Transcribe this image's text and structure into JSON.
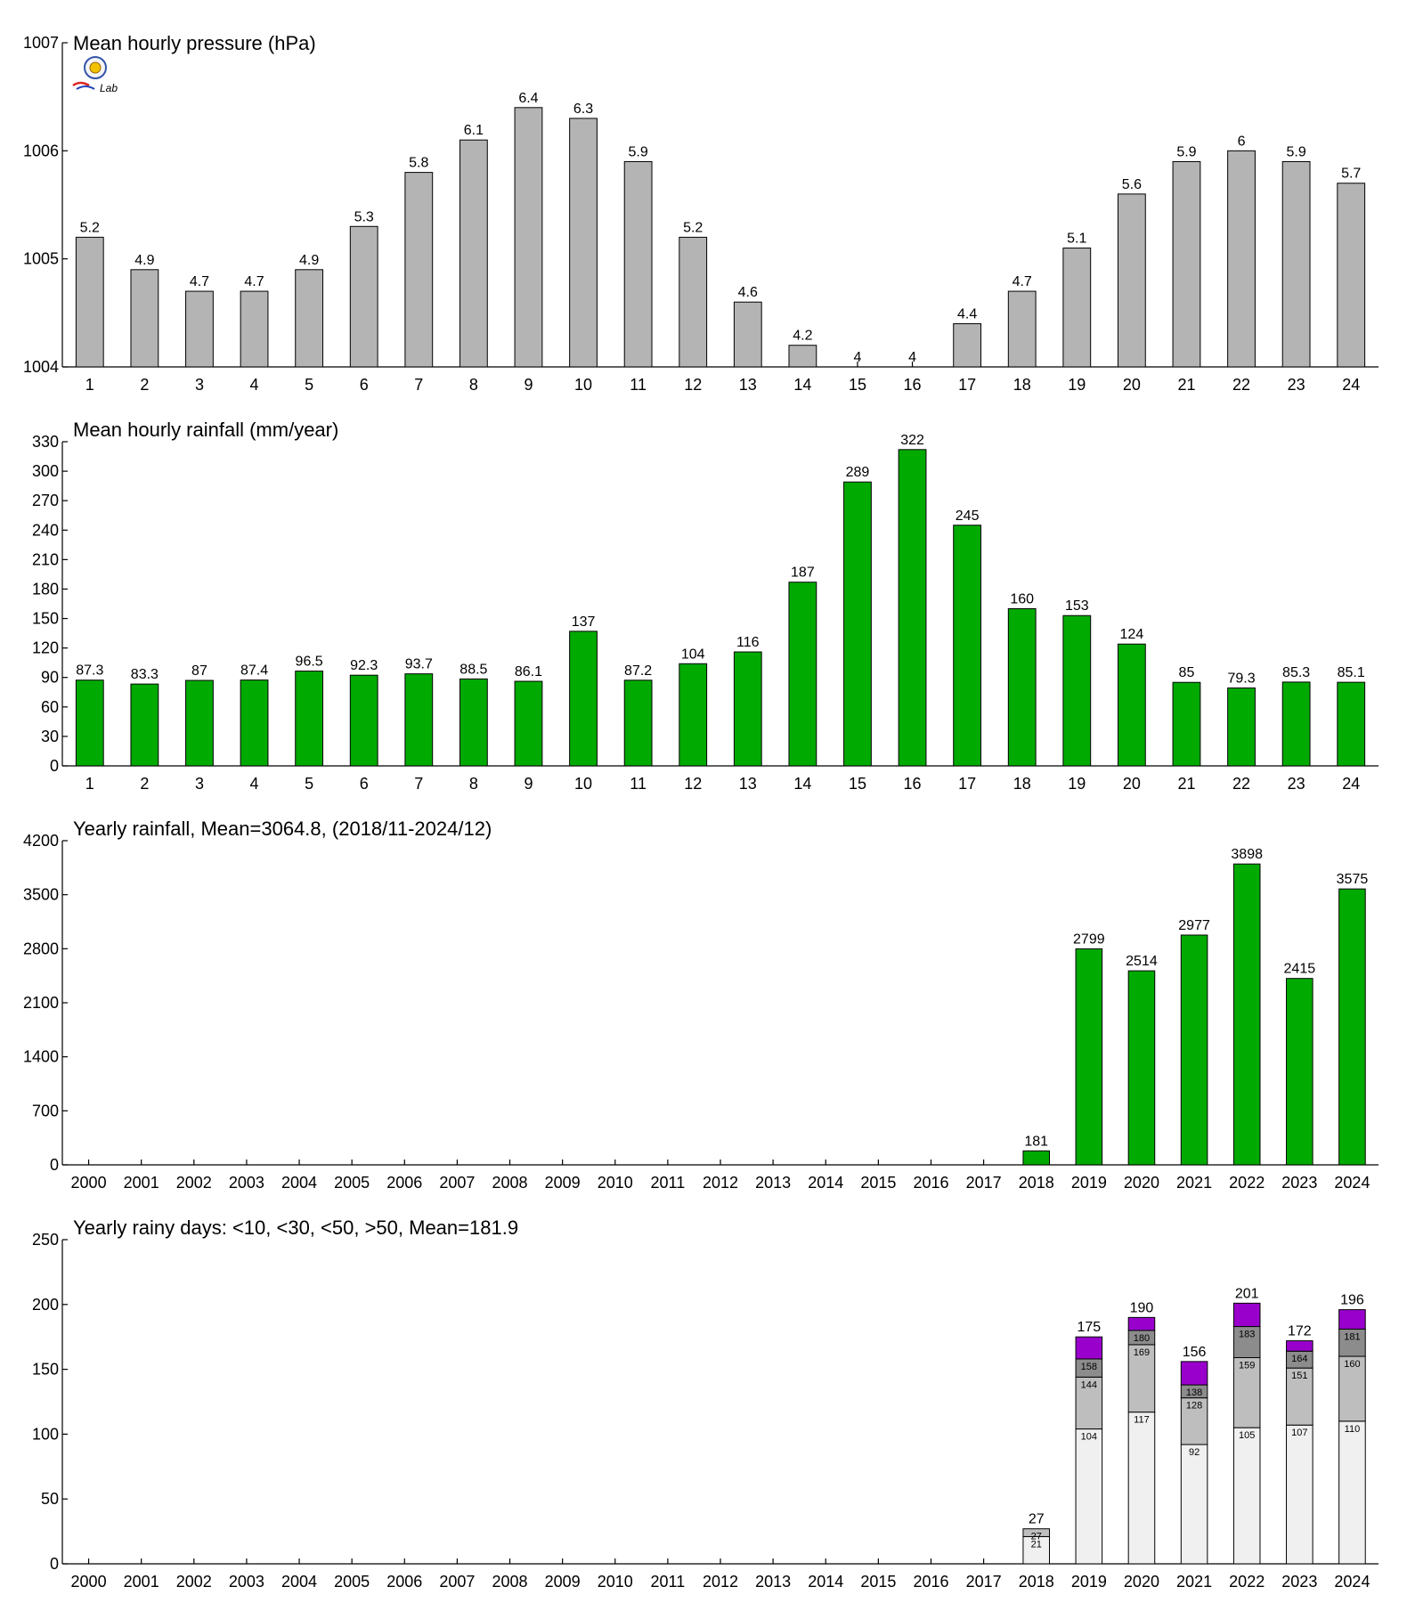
{
  "colors": {
    "pressure_bar": "#b4b4b4",
    "rain_bar": "#00aa00",
    "days_lt10": "#f0f0f0",
    "days_lt30": "#bebebe",
    "days_lt50": "#8c8c8c",
    "days_gt50": "#9900cc"
  },
  "logo": {
    "text": "Lab",
    "icon": "sun-seal-logo"
  },
  "chart_data": [
    {
      "type": "bar",
      "title": "Mean hourly pressure (hPa)",
      "categories": [
        "1",
        "2",
        "3",
        "4",
        "5",
        "6",
        "7",
        "8",
        "9",
        "10",
        "11",
        "12",
        "13",
        "14",
        "15",
        "16",
        "17",
        "18",
        "19",
        "20",
        "21",
        "22",
        "23",
        "24"
      ],
      "values": [
        1005.2,
        1004.9,
        1004.7,
        1004.7,
        1004.9,
        1005.3,
        1005.8,
        1006.1,
        1006.4,
        1006.3,
        1005.9,
        1005.2,
        1004.6,
        1004.2,
        1004.0,
        1004.0,
        1004.4,
        1004.7,
        1005.1,
        1005.6,
        1005.9,
        1006.0,
        1005.9,
        1005.7
      ],
      "labels": [
        "5.2",
        "4.9",
        "4.7",
        "4.7",
        "4.9",
        "5.3",
        "5.8",
        "6.1",
        "6.4",
        "6.3",
        "5.9",
        "5.2",
        "4.6",
        "4.2",
        "4",
        "4",
        "4.4",
        "4.7",
        "5.1",
        "5.6",
        "5.9",
        "6",
        "5.9",
        "5.7"
      ],
      "ylim": [
        1004,
        1007
      ],
      "yticks": [
        1004,
        1005,
        1006,
        1007
      ],
      "ytick_labels": [
        "1004",
        "1005",
        "1006",
        "1007"
      ],
      "grid": false
    },
    {
      "type": "bar",
      "title": "Mean hourly rainfall (mm/year)",
      "categories": [
        "1",
        "2",
        "3",
        "4",
        "5",
        "6",
        "7",
        "8",
        "9",
        "10",
        "11",
        "12",
        "13",
        "14",
        "15",
        "16",
        "17",
        "18",
        "19",
        "20",
        "21",
        "22",
        "23",
        "24"
      ],
      "values": [
        87.3,
        83.3,
        87,
        87.4,
        96.5,
        92.3,
        93.7,
        88.5,
        86.1,
        137,
        87.2,
        104,
        116,
        187,
        289,
        322,
        245,
        160,
        153,
        124,
        85,
        79.3,
        85.3,
        85.1
      ],
      "labels": [
        "87.3",
        "83.3",
        "87",
        "87.4",
        "96.5",
        "92.3",
        "93.7",
        "88.5",
        "86.1",
        "137",
        "87.2",
        "104",
        "116",
        "187",
        "289",
        "322",
        "245",
        "160",
        "153",
        "124",
        "85",
        "79.3",
        "85.3",
        "85.1"
      ],
      "ylim": [
        0,
        330
      ],
      "yticks": [
        0,
        30,
        60,
        90,
        120,
        150,
        180,
        210,
        240,
        270,
        300,
        330
      ],
      "ytick_labels": [
        "0",
        "30",
        "60",
        "90",
        "120",
        "150",
        "180",
        "210",
        "240",
        "270",
        "300",
        "330"
      ],
      "grid": false
    },
    {
      "type": "bar",
      "title": "Yearly rainfall, Mean=3064.8, (2018/11-2024/12)",
      "categories": [
        "2000",
        "2001",
        "2002",
        "2003",
        "2004",
        "2005",
        "2006",
        "2007",
        "2008",
        "2009",
        "2010",
        "2011",
        "2012",
        "2013",
        "2014",
        "2015",
        "2016",
        "2017",
        "2018",
        "2019",
        "2020",
        "2021",
        "2022",
        "2023",
        "2024"
      ],
      "values": [
        null,
        null,
        null,
        null,
        null,
        null,
        null,
        null,
        null,
        null,
        null,
        null,
        null,
        null,
        null,
        null,
        null,
        null,
        181,
        2799,
        2514,
        2977,
        3898,
        2415,
        3575
      ],
      "labels": [
        "",
        "",
        "",
        "",
        "",
        "",
        "",
        "",
        "",
        "",
        "",
        "",
        "",
        "",
        "",
        "",
        "",
        "",
        "181",
        "2799",
        "2514",
        "2977",
        "3898",
        "2415",
        "3575"
      ],
      "ylim": [
        0,
        4200
      ],
      "yticks": [
        0,
        700,
        1400,
        2100,
        2800,
        3500,
        4200
      ],
      "ytick_labels": [
        "0",
        "700",
        "1400",
        "2100",
        "2800",
        "3500",
        "4200"
      ],
      "grid": false
    },
    {
      "type": "stacked-bar",
      "title": "Yearly rainy days: <10, <30, <50, >50, Mean=181.9",
      "categories": [
        "2000",
        "2001",
        "2002",
        "2003",
        "2004",
        "2005",
        "2006",
        "2007",
        "2008",
        "2009",
        "2010",
        "2011",
        "2012",
        "2013",
        "2014",
        "2015",
        "2016",
        "2017",
        "2018",
        "2019",
        "2020",
        "2021",
        "2022",
        "2023",
        "2024"
      ],
      "stack_years": [
        {
          "year": "2018",
          "cumulative": [
            21,
            27,
            27,
            27
          ],
          "segment_labels": [
            "21",
            "27",
            "",
            ""
          ],
          "total_label": "27"
        },
        {
          "year": "2019",
          "cumulative": [
            104,
            144,
            158,
            175
          ],
          "segment_labels": [
            "104",
            "144",
            "158",
            ""
          ],
          "total_label": "175"
        },
        {
          "year": "2020",
          "cumulative": [
            117,
            169,
            180,
            190
          ],
          "segment_labels": [
            "117",
            "169",
            "180",
            ""
          ],
          "total_label": "190"
        },
        {
          "year": "2021",
          "cumulative": [
            92,
            128,
            138,
            156
          ],
          "segment_labels": [
            "92",
            "128",
            "138",
            ""
          ],
          "total_label": "156"
        },
        {
          "year": "2022",
          "cumulative": [
            105,
            159,
            183,
            201
          ],
          "segment_labels": [
            "105",
            "159",
            "183",
            ""
          ],
          "total_label": "201"
        },
        {
          "year": "2023",
          "cumulative": [
            107,
            151,
            164,
            172
          ],
          "segment_labels": [
            "107",
            "151",
            "164",
            ""
          ],
          "total_label": "172"
        },
        {
          "year": "2024",
          "cumulative": [
            110,
            160,
            181,
            196
          ],
          "segment_labels": [
            "110",
            "160",
            "181",
            ""
          ],
          "total_label": "196"
        }
      ],
      "ylim": [
        0,
        250
      ],
      "yticks": [
        0,
        50,
        100,
        150,
        200,
        250
      ],
      "ytick_labels": [
        "0",
        "50",
        "100",
        "150",
        "200",
        "250"
      ],
      "grid": false
    }
  ]
}
